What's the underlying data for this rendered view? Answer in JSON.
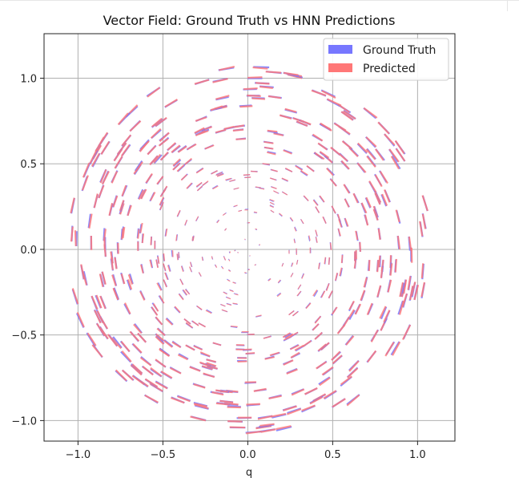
{
  "chart_data": {
    "type": "quiver",
    "title": "Vector Field: Ground Truth vs HNN Predictions",
    "xlabel": "q",
    "ylabel": "",
    "xlim": [
      -1.2,
      1.22
    ],
    "ylim": [
      -1.12,
      1.26
    ],
    "xticks": [
      -1.0,
      -0.5,
      0.0,
      0.5,
      1.0
    ],
    "yticks": [
      -1.0,
      -0.5,
      0.0,
      0.5,
      1.0
    ],
    "xtick_labels": [
      "−1.0",
      "−0.5",
      "0.0",
      "0.5",
      "1.0"
    ],
    "ytick_labels": [
      "−1.0",
      "−0.5",
      "0.0",
      "0.5",
      "1.0"
    ],
    "grid": true,
    "legend_position": "top-right",
    "field": "rotational (dq/dt = p, dp/dt = −q), sampled on rings of radius 0.05–1.08",
    "series": [
      {
        "name": "Ground Truth",
        "color": "#7777ff"
      },
      {
        "name": "Predicted",
        "color": "#ff7777"
      }
    ]
  }
}
